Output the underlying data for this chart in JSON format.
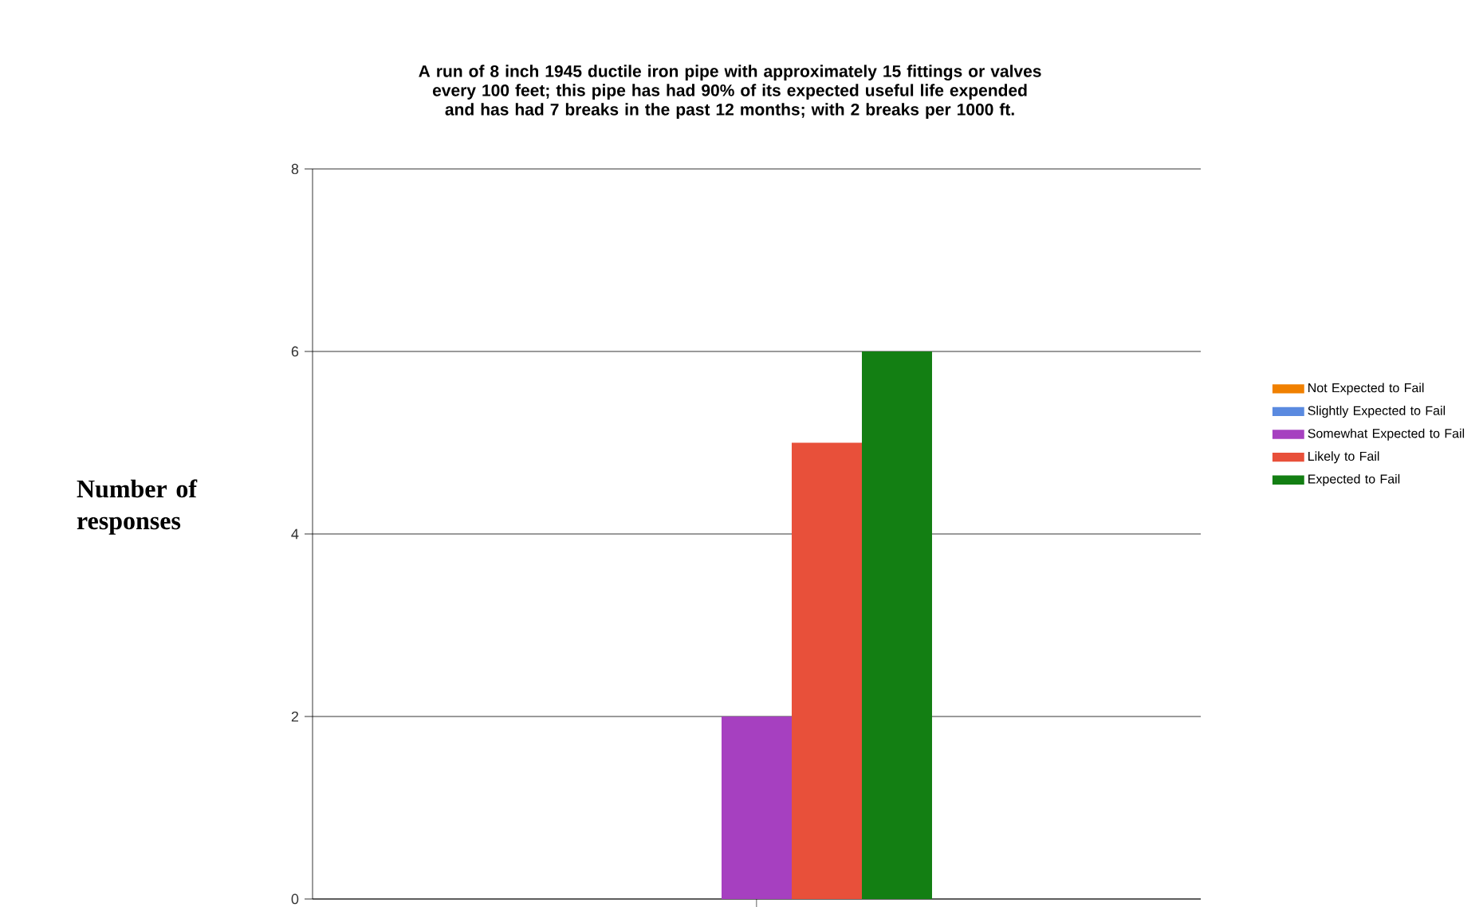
{
  "chart_data": {
    "type": "bar",
    "title": "A run of 8 inch 1945 ductile iron pipe with approximately 15 fittings or valves every 100 feet; this pipe has had 90% of its expected useful life expended and has had 7 breaks in the past 12 months; with 2 breaks per 1000 ft.",
    "ylabel": "Number of responses",
    "categories": [
      null
    ],
    "series": [
      {
        "name": "Not Expected to Fail",
        "color": "#f08000",
        "values": [
          0
        ]
      },
      {
        "name": "Slightly Expected to Fail",
        "color": "#5a8ae0",
        "values": [
          0
        ]
      },
      {
        "name": "Somewhat Expected to Fail",
        "color": "#a640c0",
        "values": [
          2
        ]
      },
      {
        "name": "Likely to Fail",
        "color": "#e8503a",
        "values": [
          5
        ]
      },
      {
        "name": "Expected to Fail",
        "color": "#137f13",
        "values": [
          6
        ]
      }
    ],
    "ylim": [
      0,
      8
    ],
    "yticks": [
      0,
      2,
      4,
      6,
      8
    ],
    "grid": "y",
    "legend": "right"
  }
}
